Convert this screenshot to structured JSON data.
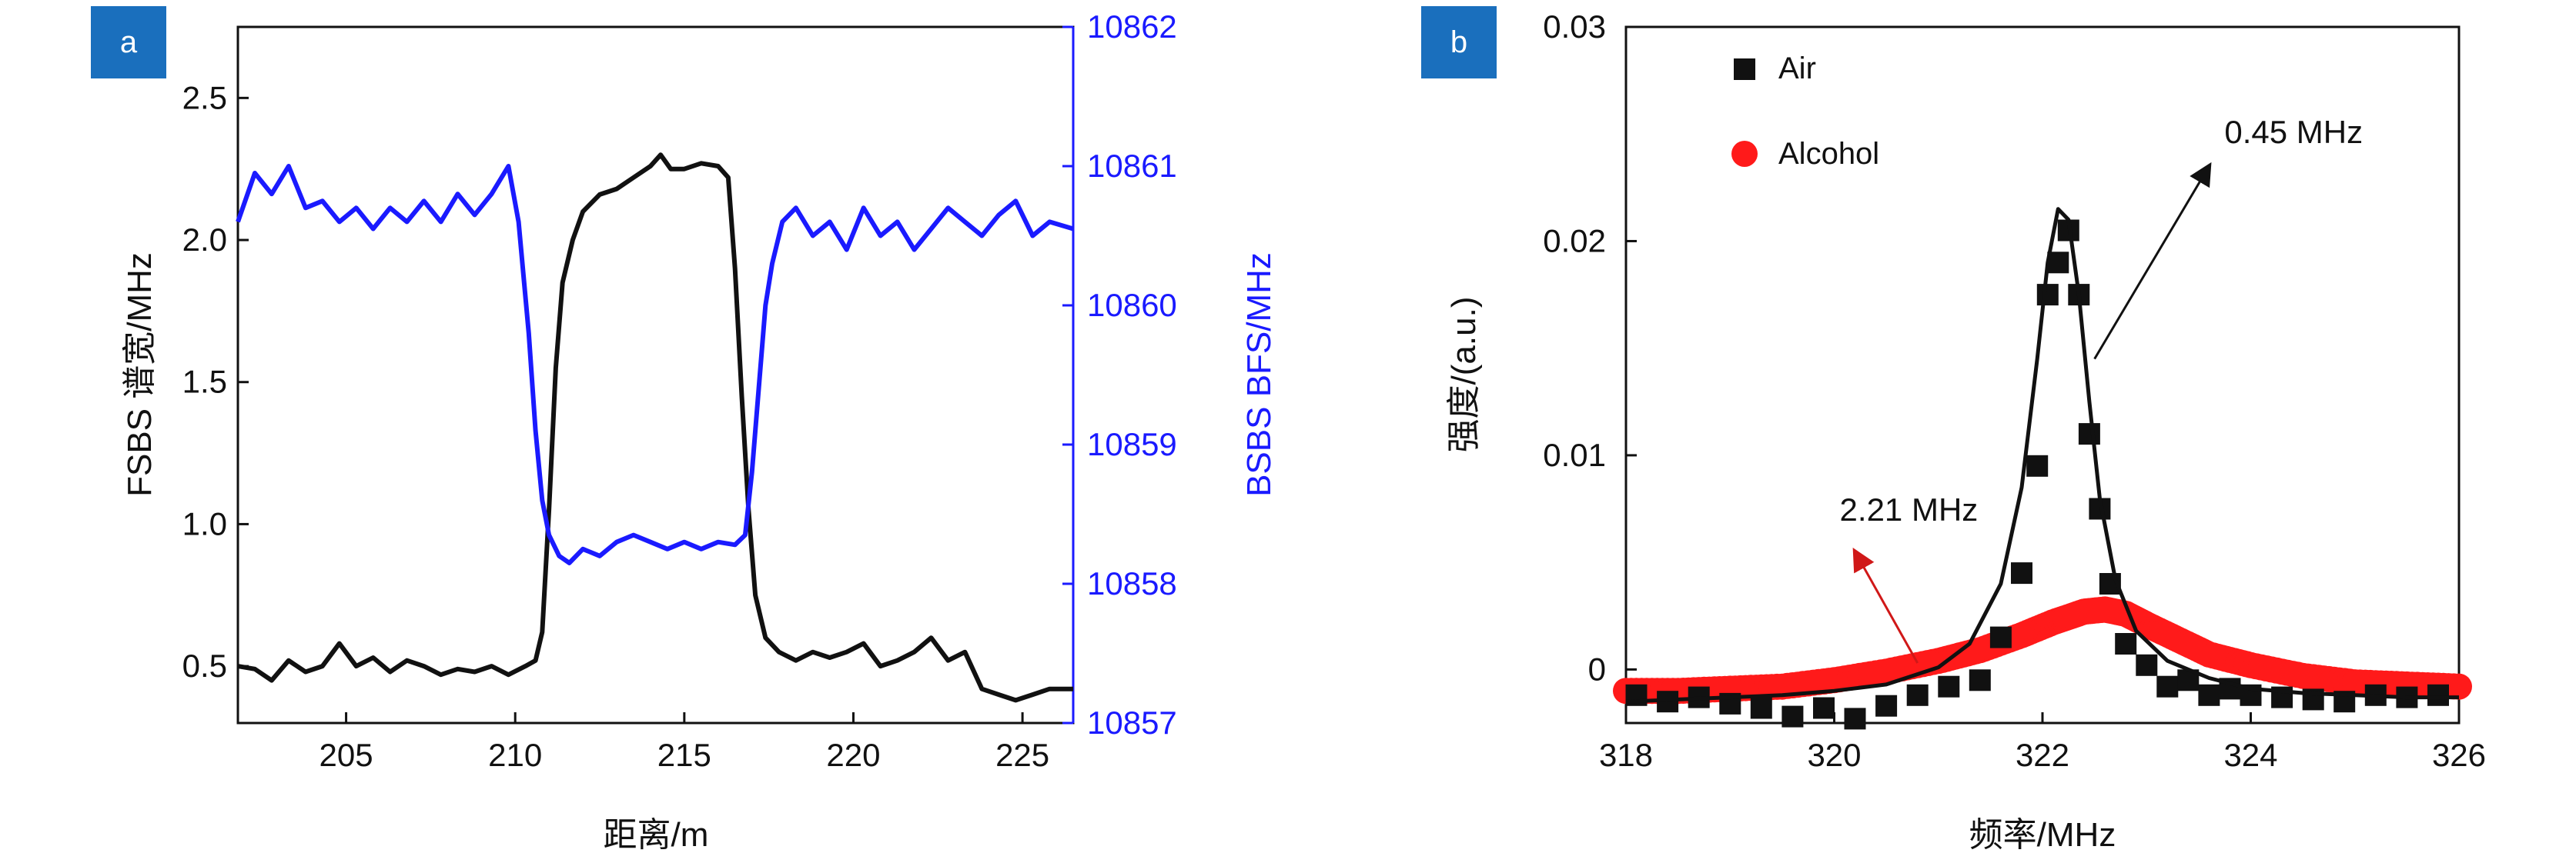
{
  "colors": {
    "fsbs": "#111111",
    "bsbs": "#1a1aff",
    "air": "#111111",
    "alcohol": "#ff1a1a",
    "badge": "#1a6fbd",
    "arrow_red": "#d01818"
  },
  "chart_data": [
    {
      "type": "line",
      "panel_label": "a",
      "xlabel": "距离/m",
      "ylabel_left": "FSBS 谱宽/MHz",
      "ylabel_right": "BSBS BFS/MHz",
      "xlim": [
        201.8,
        226.5
      ],
      "ylim_left": [
        0.3,
        2.75
      ],
      "ylim_right": [
        10857,
        10862
      ],
      "x_ticks": [
        "205",
        "210",
        "215",
        "220",
        "225"
      ],
      "y_left_ticks": [
        "0.5",
        "1.0",
        "1.5",
        "2.0",
        "2.5"
      ],
      "y_right_ticks": [
        "10857",
        "10858",
        "10859",
        "10860",
        "10861",
        "10862"
      ],
      "grid": false,
      "series": [
        {
          "axis": "left",
          "x": [
            201.8,
            202.3,
            202.8,
            203.3,
            203.8,
            204.3,
            204.8,
            205.3,
            205.8,
            206.3,
            206.8,
            207.3,
            207.8,
            208.3,
            208.8,
            209.3,
            209.8,
            210.3,
            210.6,
            210.8,
            211.0,
            211.2,
            211.4,
            211.7,
            212.0,
            212.5,
            213.0,
            213.5,
            214.0,
            214.3,
            214.6,
            215.0,
            215.5,
            216.0,
            216.3,
            216.5,
            216.7,
            216.9,
            217.1,
            217.4,
            217.8,
            218.3,
            218.8,
            219.3,
            219.8,
            220.3,
            220.8,
            221.3,
            221.8,
            222.3,
            222.8,
            223.3,
            223.8,
            224.3,
            224.8,
            225.3,
            225.8,
            226.5
          ],
          "values": [
            0.5,
            0.49,
            0.45,
            0.52,
            0.48,
            0.5,
            0.58,
            0.5,
            0.53,
            0.48,
            0.52,
            0.5,
            0.47,
            0.49,
            0.48,
            0.5,
            0.47,
            0.5,
            0.52,
            0.62,
            1.05,
            1.55,
            1.85,
            2.0,
            2.1,
            2.16,
            2.18,
            2.22,
            2.26,
            2.3,
            2.25,
            2.25,
            2.27,
            2.26,
            2.22,
            1.9,
            1.45,
            1.05,
            0.75,
            0.6,
            0.55,
            0.52,
            0.55,
            0.53,
            0.55,
            0.58,
            0.5,
            0.52,
            0.55,
            0.6,
            0.52,
            0.55,
            0.42,
            0.4,
            0.38,
            0.4,
            0.42,
            0.42
          ]
        },
        {
          "axis": "right",
          "x": [
            201.8,
            202.3,
            202.8,
            203.3,
            203.8,
            204.3,
            204.8,
            205.3,
            205.8,
            206.3,
            206.8,
            207.3,
            207.8,
            208.3,
            208.8,
            209.3,
            209.8,
            210.1,
            210.4,
            210.6,
            210.8,
            211.0,
            211.3,
            211.6,
            212.0,
            212.5,
            213.0,
            213.5,
            214.0,
            214.5,
            215.0,
            215.5,
            216.0,
            216.5,
            216.8,
            217.0,
            217.2,
            217.4,
            217.6,
            217.9,
            218.3,
            218.8,
            219.3,
            219.8,
            220.3,
            220.8,
            221.3,
            221.8,
            222.3,
            222.8,
            223.3,
            223.8,
            224.3,
            224.8,
            225.3,
            225.8,
            226.5
          ],
          "values": [
            10860.6,
            10860.95,
            10860.8,
            10861.0,
            10860.7,
            10860.75,
            10860.6,
            10860.7,
            10860.55,
            10860.7,
            10860.6,
            10860.75,
            10860.6,
            10860.8,
            10860.65,
            10860.8,
            10861.0,
            10860.6,
            10859.8,
            10859.1,
            10858.6,
            10858.35,
            10858.2,
            10858.15,
            10858.25,
            10858.2,
            10858.3,
            10858.35,
            10858.3,
            10858.25,
            10858.3,
            10858.25,
            10858.3,
            10858.28,
            10858.35,
            10858.8,
            10859.4,
            10860.0,
            10860.3,
            10860.6,
            10860.7,
            10860.5,
            10860.6,
            10860.4,
            10860.7,
            10860.5,
            10860.6,
            10860.4,
            10860.55,
            10860.7,
            10860.6,
            10860.5,
            10860.65,
            10860.75,
            10860.5,
            10860.6,
            10860.55
          ]
        }
      ]
    },
    {
      "type": "scatter",
      "panel_label": "b",
      "xlabel": "频率/MHz",
      "ylabel": "强度/(a.u.)",
      "xlim": [
        318,
        326
      ],
      "ylim": [
        -0.0025,
        0.03
      ],
      "x_ticks": [
        "318",
        "320",
        "322",
        "324",
        "326"
      ],
      "y_ticks": [
        "0",
        "0.01",
        "0.02",
        "0.03"
      ],
      "grid": false,
      "legend": {
        "placement": "top-left",
        "entries": [
          "Air",
          "Alcohol"
        ]
      },
      "series": [
        {
          "name": "Air",
          "marker": "square",
          "x": [
            318.1,
            318.4,
            318.7,
            319.0,
            319.3,
            319.6,
            319.9,
            320.2,
            320.5,
            320.8,
            321.1,
            321.4,
            321.6,
            321.8,
            321.95,
            322.05,
            322.15,
            322.25,
            322.35,
            322.45,
            322.55,
            322.65,
            322.8,
            323.0,
            323.2,
            323.4,
            323.6,
            323.8,
            324.0,
            324.3,
            324.6,
            324.9,
            325.2,
            325.5,
            325.8
          ],
          "values": [
            -0.0012,
            -0.0015,
            -0.0013,
            -0.0016,
            -0.0018,
            -0.0022,
            -0.0018,
            -0.0023,
            -0.0017,
            -0.0012,
            -0.0008,
            -0.0005,
            0.0015,
            0.0045,
            0.0095,
            0.0175,
            0.019,
            0.0205,
            0.0175,
            0.011,
            0.0075,
            0.004,
            0.0012,
            0.0002,
            -0.0008,
            -0.0005,
            -0.0012,
            -0.0009,
            -0.0012,
            -0.0013,
            -0.0014,
            -0.0015,
            -0.0012,
            -0.0013,
            -0.0012
          ]
        },
        {
          "name": "Alcohol",
          "marker": "circle",
          "x": [
            318.0,
            318.5,
            319.0,
            319.5,
            320.0,
            320.5,
            321.0,
            321.4,
            321.8,
            322.1,
            322.4,
            322.6,
            322.8,
            323.0,
            323.3,
            323.6,
            324.0,
            324.5,
            325.0,
            325.5,
            326.0
          ],
          "values": [
            -0.001,
            -0.001,
            -0.0009,
            -0.0008,
            -0.0005,
            -0.0001,
            0.0004,
            0.0009,
            0.0016,
            0.0022,
            0.0027,
            0.0028,
            0.0026,
            0.0021,
            0.0014,
            0.0007,
            0.0002,
            -0.0003,
            -0.0006,
            -0.0007,
            -0.0008
          ]
        }
      ],
      "fit_line": {
        "x": [
          318.0,
          318.5,
          319.0,
          319.5,
          320.0,
          320.5,
          321.0,
          321.3,
          321.6,
          321.8,
          321.95,
          322.05,
          322.15,
          322.25,
          322.35,
          322.45,
          322.55,
          322.7,
          322.9,
          323.2,
          323.6,
          324.0,
          324.5,
          325.0,
          325.5,
          326.0
        ],
        "values": [
          -0.0015,
          -0.0014,
          -0.0013,
          -0.0012,
          -0.001,
          -0.0007,
          0.0001,
          0.0012,
          0.004,
          0.0085,
          0.0145,
          0.019,
          0.0215,
          0.021,
          0.0175,
          0.0125,
          0.008,
          0.0042,
          0.0018,
          0.0004,
          -0.0004,
          -0.0009,
          -0.0011,
          -0.0012,
          -0.0013,
          -0.0013
        ]
      },
      "annotations": [
        {
          "text": "0.45 MHz",
          "x": 322.5,
          "y": 0.0145,
          "tx": 323.6,
          "ty": 0.0235
        },
        {
          "text": "2.21 MHz",
          "x": 320.8,
          "y": 0.0003,
          "tx": 320.2,
          "ty": 0.0055
        }
      ]
    }
  ]
}
